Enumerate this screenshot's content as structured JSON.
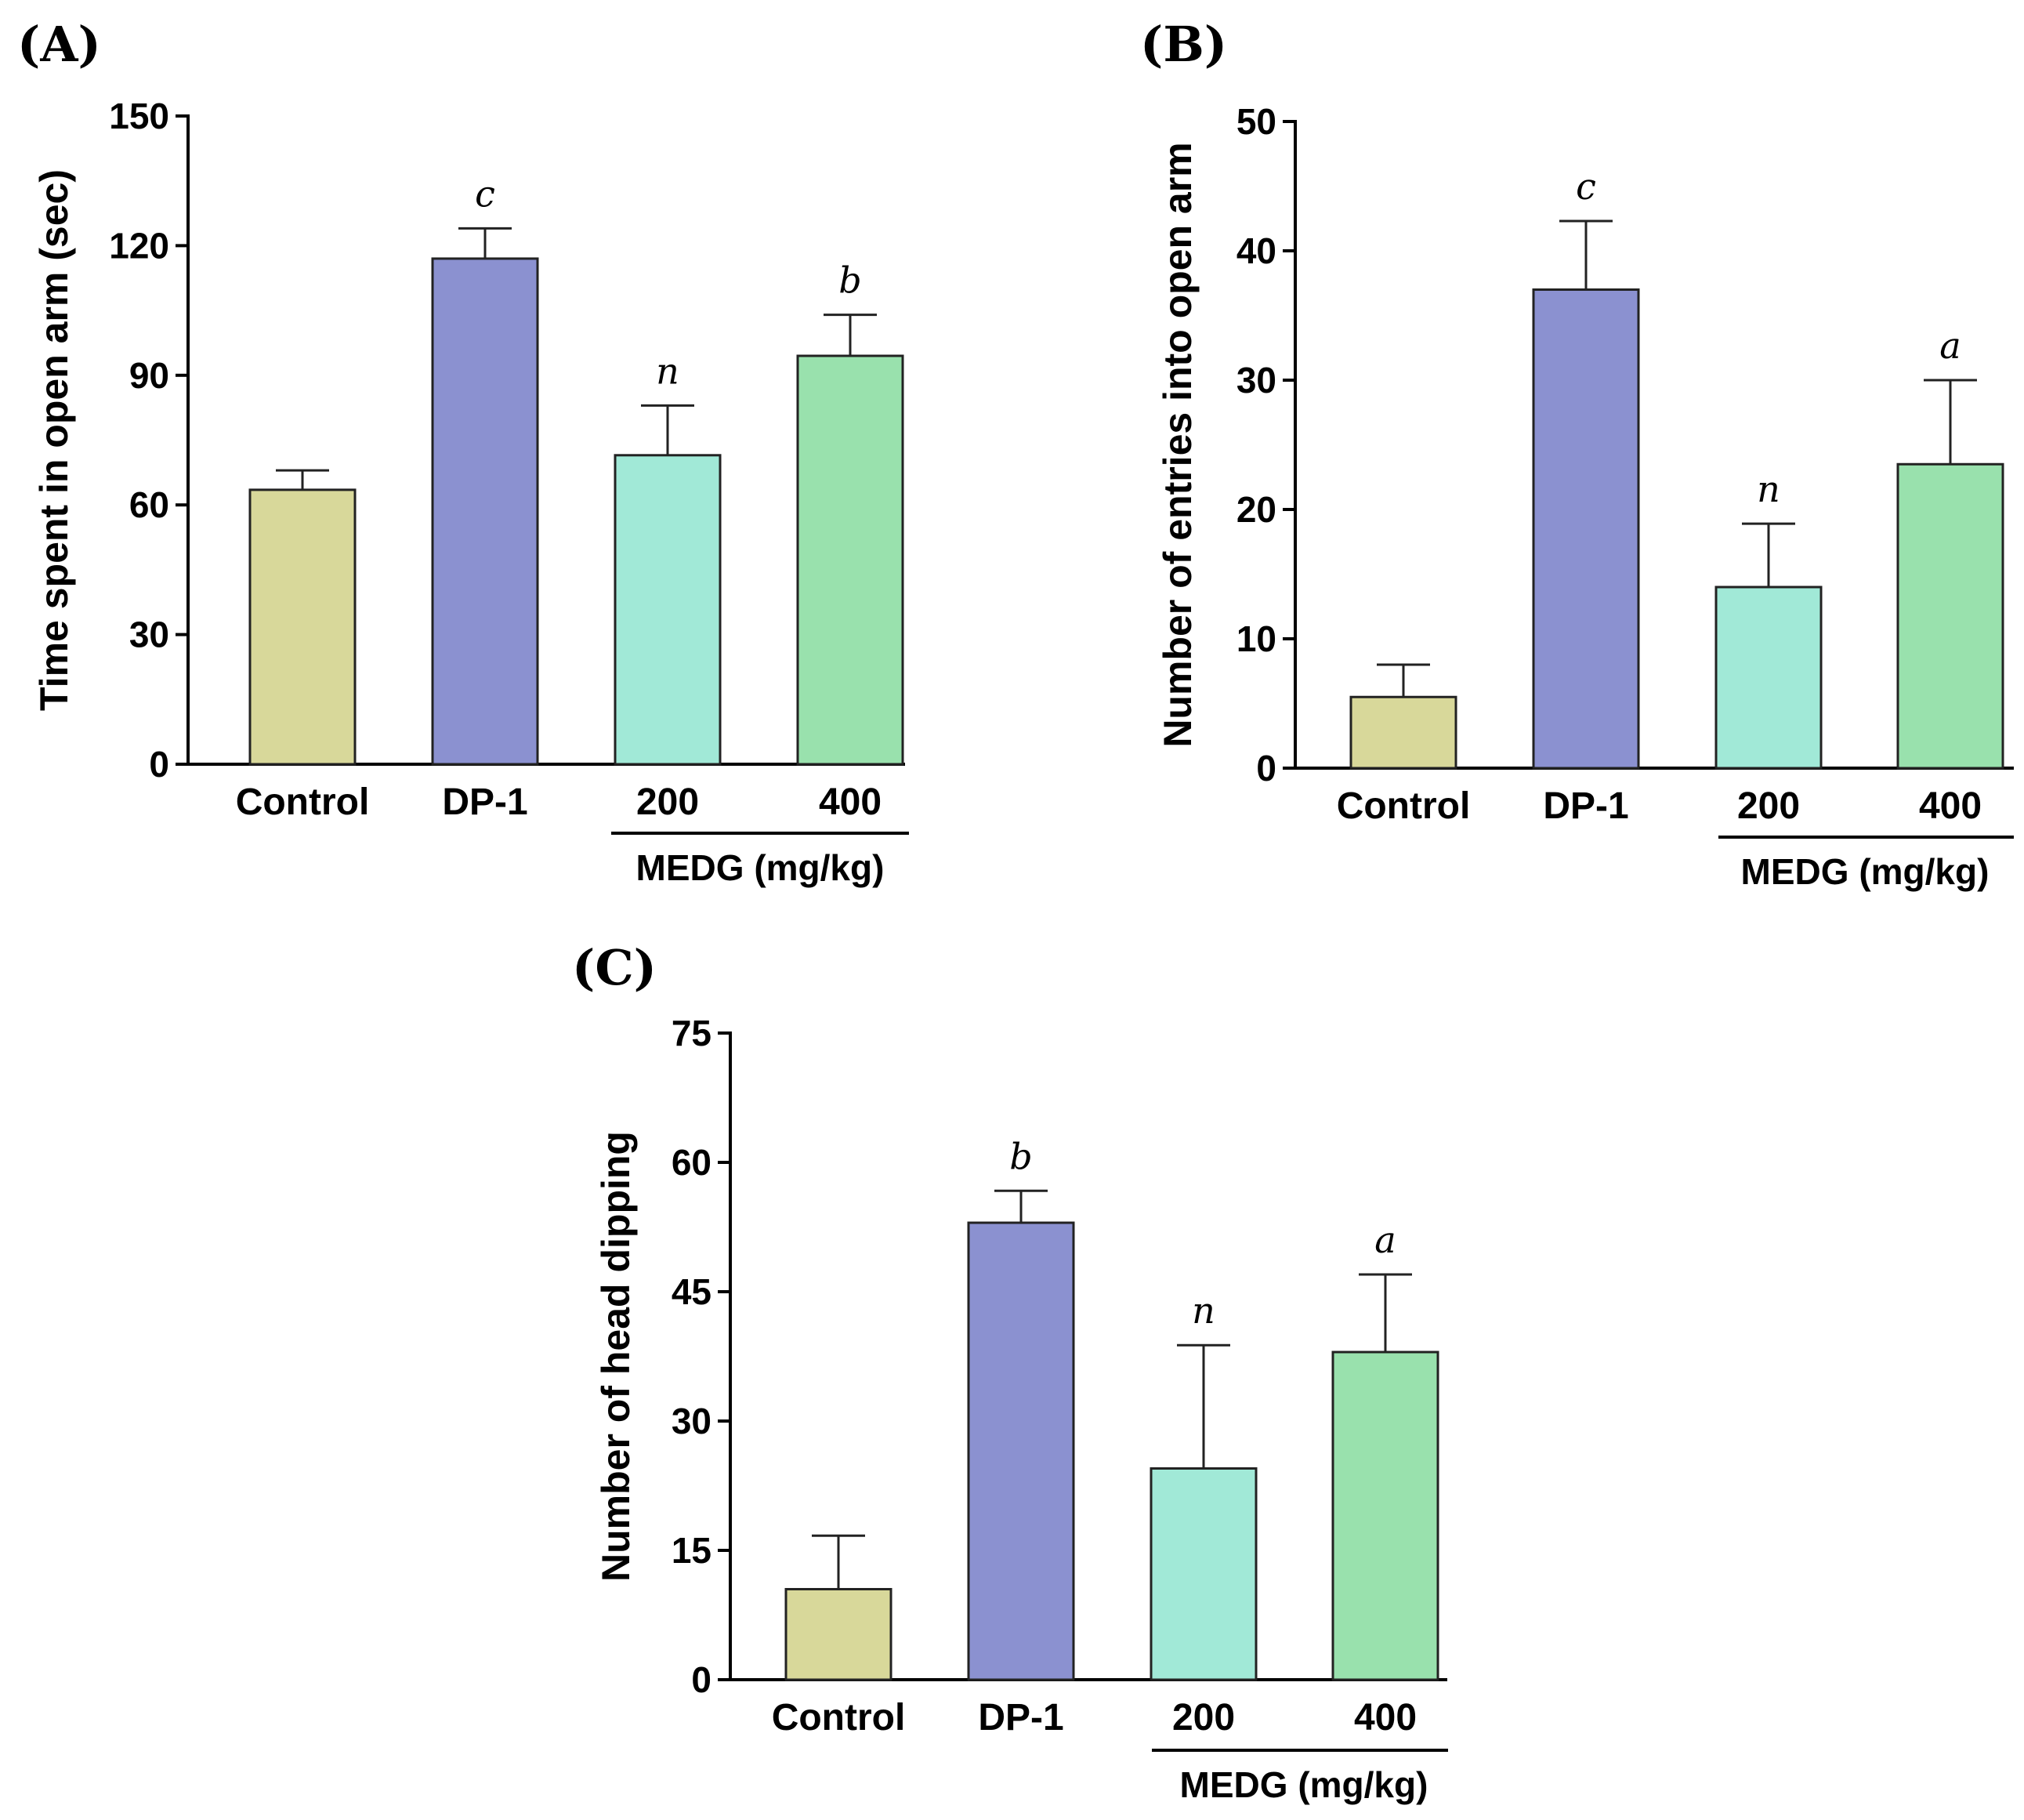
{
  "colors": {
    "Control": "#d8d89a",
    "DP-1": "#8b91d0",
    "200": "#a1e9d7",
    "400": "#99e1ad",
    "stroke": "#222222"
  },
  "chart_data": [
    {
      "type": "bar",
      "panel": "(A)",
      "categories": [
        "Control",
        "DP-1",
        "200",
        "400"
      ],
      "values": [
        63.5,
        117,
        71.5,
        94.5
      ],
      "errors": [
        4.5,
        7,
        11.5,
        9.5
      ],
      "significance": [
        "",
        "c",
        "n",
        "b"
      ],
      "ylabel": "Time spent in open arm (sec)",
      "ylim": [
        0,
        150
      ],
      "yticks": [
        "0",
        "30",
        "60",
        "90",
        "120",
        "150"
      ],
      "group_label": "MEDG (mg/kg)"
    },
    {
      "type": "bar",
      "panel": "(B)",
      "categories": [
        "Control",
        "DP-1",
        "200",
        "400"
      ],
      "values": [
        5.5,
        37,
        14,
        23.5
      ],
      "errors": [
        2.5,
        5.3,
        4.9,
        6.5
      ],
      "significance": [
        "",
        "c",
        "n",
        "a"
      ],
      "ylabel": "Number of entries into open arm",
      "ylim": [
        0,
        50
      ],
      "yticks": [
        "0",
        "10",
        "20",
        "30",
        "40",
        "50"
      ],
      "group_label": "MEDG (mg/kg)"
    },
    {
      "type": "bar",
      "panel": "(C)",
      "categories": [
        "Control",
        "DP-1",
        "200",
        "400"
      ],
      "values": [
        10.5,
        53,
        24.5,
        38
      ],
      "errors": [
        6.2,
        3.7,
        14.3,
        9
      ],
      "significance": [
        "",
        "b",
        "n",
        "a"
      ],
      "ylabel": "Number of head dipping",
      "ylim": [
        0,
        75
      ],
      "yticks": [
        "0",
        "15",
        "30",
        "45",
        "60",
        "75"
      ],
      "group_label": "MEDG (mg/kg)"
    }
  ]
}
